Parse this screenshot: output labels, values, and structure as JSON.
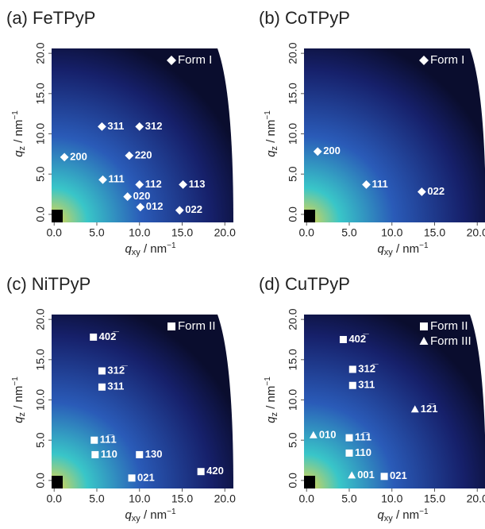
{
  "chart_data": [
    {
      "type": "scatter",
      "title": "(a) FeTPyP",
      "xlabel": {
        "symbol": "q",
        "subscript": "xy",
        "unit": " / nm",
        "exponent": "−1"
      },
      "ylabel": {
        "symbol": "q",
        "subscript": "z",
        "unit": " / nm",
        "exponent": "−1"
      },
      "xlim": [
        -0.3,
        21.0
      ],
      "ylim": [
        -1.0,
        21.0
      ],
      "xticks": [
        {
          "value": 0,
          "label": "0.0"
        },
        {
          "value": 5,
          "label": "5.0"
        },
        {
          "value": 10,
          "label": "10.0"
        },
        {
          "value": 15,
          "label": "15.0"
        },
        {
          "value": 20,
          "label": "20.0"
        }
      ],
      "yticks": [
        {
          "value": 0,
          "label": "0.0"
        },
        {
          "value": 5,
          "label": "5.0"
        },
        {
          "value": 10,
          "label": "10.0"
        },
        {
          "value": 15,
          "label": "15.0"
        },
        {
          "value": 20,
          "label": "20.0"
        }
      ],
      "legend": "top-right",
      "series": [
        {
          "name": "Form I",
          "marker": "diamond",
          "color": "#ffffff",
          "labels": [
            "311",
            "312",
            "200",
            "220",
            "111",
            "112",
            "113",
            "020",
            "012",
            "022"
          ],
          "x": [
            5.6,
            10.0,
            1.2,
            8.8,
            5.7,
            10.0,
            15.1,
            8.6,
            10.1,
            14.7
          ],
          "values": [
            10.9,
            10.9,
            7.1,
            7.3,
            4.3,
            3.7,
            3.7,
            2.2,
            0.9,
            0.5
          ]
        }
      ]
    },
    {
      "type": "scatter",
      "title": "(b) CoTPyP",
      "xlabel": {
        "symbol": "q",
        "subscript": "xy",
        "unit": " / nm",
        "exponent": "−1"
      },
      "ylabel": {
        "symbol": "q",
        "subscript": "z",
        "unit": " / nm",
        "exponent": "−1"
      },
      "xlim": [
        -0.3,
        21.0
      ],
      "ylim": [
        -1.0,
        21.0
      ],
      "xticks": [
        {
          "value": 0,
          "label": "0.0"
        },
        {
          "value": 5,
          "label": "5.0"
        },
        {
          "value": 10,
          "label": "10.0"
        },
        {
          "value": 15,
          "label": "15.0"
        },
        {
          "value": 20,
          "label": "20.0"
        }
      ],
      "yticks": [
        {
          "value": 0,
          "label": "0.0"
        },
        {
          "value": 5,
          "label": "5.0"
        },
        {
          "value": 10,
          "label": "10.0"
        },
        {
          "value": 15,
          "label": "15.0"
        },
        {
          "value": 20,
          "label": "20.0"
        }
      ],
      "legend": "top-right",
      "series": [
        {
          "name": "Form I",
          "marker": "diamond",
          "color": "#ffffff",
          "labels": [
            "200",
            "111",
            "022"
          ],
          "x": [
            1.3,
            7.0,
            13.5
          ],
          "values": [
            7.8,
            3.7,
            2.8
          ]
        }
      ]
    },
    {
      "type": "scatter",
      "title": "(c) NiTPyP",
      "xlabel": {
        "symbol": "q",
        "subscript": "xy",
        "unit": " / nm",
        "exponent": "−1"
      },
      "ylabel": {
        "symbol": "q",
        "subscript": "z",
        "unit": " / nm",
        "exponent": "−1"
      },
      "xlim": [
        -0.3,
        21.0
      ],
      "ylim": [
        -1.0,
        21.0
      ],
      "xticks": [
        {
          "value": 0,
          "label": "0.0"
        },
        {
          "value": 5,
          "label": "5.0"
        },
        {
          "value": 10,
          "label": "10.0"
        },
        {
          "value": 15,
          "label": "15.0"
        },
        {
          "value": 20,
          "label": "20.0"
        }
      ],
      "yticks": [
        {
          "value": 0,
          "label": "0.0"
        },
        {
          "value": 5,
          "label": "5.0"
        },
        {
          "value": 10,
          "label": "10.0"
        },
        {
          "value": 15,
          "label": "15.0"
        },
        {
          "value": 20,
          "label": "20.0"
        }
      ],
      "legend": "top-right",
      "series": [
        {
          "name": "Form II",
          "marker": "square",
          "color": "#ffffff",
          "labels": [
            "402̅",
            "312̅",
            "311",
            "11̅1",
            "110",
            "130",
            "021",
            "420"
          ],
          "x": [
            4.6,
            5.6,
            5.6,
            4.7,
            4.8,
            10.0,
            9.1,
            17.2
          ],
          "values": [
            17.8,
            13.6,
            11.6,
            5.0,
            3.2,
            3.2,
            0.3,
            1.1
          ]
        }
      ]
    },
    {
      "type": "scatter",
      "title": "(d) CuTPyP",
      "xlabel": {
        "symbol": "q",
        "subscript": "xy",
        "unit": " / nm",
        "exponent": "−1"
      },
      "ylabel": {
        "symbol": "q",
        "subscript": "z",
        "unit": " / nm",
        "exponent": "−1"
      },
      "xlim": [
        -0.3,
        21.0
      ],
      "ylim": [
        -1.0,
        21.0
      ],
      "xticks": [
        {
          "value": 0,
          "label": "0.0"
        },
        {
          "value": 5,
          "label": "5.0"
        },
        {
          "value": 10,
          "label": "10.0"
        },
        {
          "value": 15,
          "label": "15.0"
        },
        {
          "value": 20,
          "label": "20.0"
        }
      ],
      "yticks": [
        {
          "value": 0,
          "label": "0.0"
        },
        {
          "value": 5,
          "label": "5.0"
        },
        {
          "value": 10,
          "label": "10.0"
        },
        {
          "value": 15,
          "label": "15.0"
        },
        {
          "value": 20,
          "label": "20.0"
        }
      ],
      "legend": "top-right",
      "series": [
        {
          "name": "Form II",
          "marker": "square",
          "color": "#ffffff",
          "labels": [
            "402̅",
            "312̅",
            "311",
            "11̅1",
            "110",
            "021"
          ],
          "x": [
            4.3,
            5.4,
            5.4,
            5.0,
            5.0,
            9.1
          ],
          "values": [
            17.5,
            13.8,
            11.8,
            5.3,
            3.4,
            0.5
          ]
        },
        {
          "name": "Form III",
          "marker": "triangle",
          "color": "#ffffff",
          "labels": [
            "010",
            "12̅1",
            "001"
          ],
          "x": [
            0.8,
            12.7,
            5.3
          ],
          "values": [
            5.6,
            8.8,
            0.6
          ]
        }
      ]
    }
  ]
}
